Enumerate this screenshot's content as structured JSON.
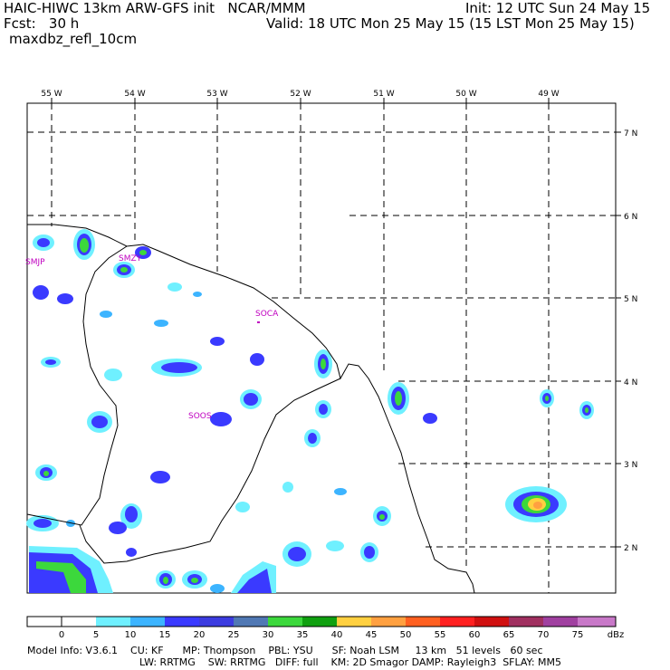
{
  "header": {
    "title_left": "HAIC-HIWC 13km ARW-GFS init   NCAR/MMM",
    "init": "Init: 12 UTC Sun 24 May 15",
    "fcst": "Fcst:   30 h",
    "valid": "Valid: 18 UTC Mon 25 May 15 (15 LST Mon 25 May 15)",
    "field": "maxdbz_refl_10cm"
  },
  "map": {
    "lon_labels": [
      "55 W",
      "54 W",
      "53 W",
      "52 W",
      "51 W",
      "50 W",
      "49 W"
    ],
    "lat_labels": [
      "7 N",
      "6 N",
      "5 N",
      "4 N",
      "3 N",
      "2 N"
    ],
    "stations": [
      "SMJP",
      "SMZY",
      "SOCA",
      "SOOS"
    ]
  },
  "colorbar": {
    "ticks": [
      "0",
      "5",
      "10",
      "15",
      "20",
      "25",
      "30",
      "35",
      "40",
      "45",
      "50",
      "55",
      "60",
      "65",
      "70",
      "75"
    ],
    "unit": "dBz",
    "colors": [
      "#ffffff",
      "#6ff0ff",
      "#3cb4ff",
      "#3a3aff",
      "#3c3ce0",
      "#5078b4",
      "#3cd83c",
      "#10a010",
      "#ffd040",
      "#ffa040",
      "#ff6020",
      "#ff2020",
      "#d01010",
      "#a03060",
      "#a040a0",
      "#c878c8"
    ]
  },
  "footer": {
    "line1": "Model Info: V3.6.1    CU: KF      MP: Thompson    PBL: YSU      SF: Noah LSM     13 km   51 levels   60 sec",
    "line2": "LW: RRTMG    SW: RRTMG   DIFF: full    KM: 2D Smagor DAMP: Rayleigh3  SFLAY: MM5"
  }
}
